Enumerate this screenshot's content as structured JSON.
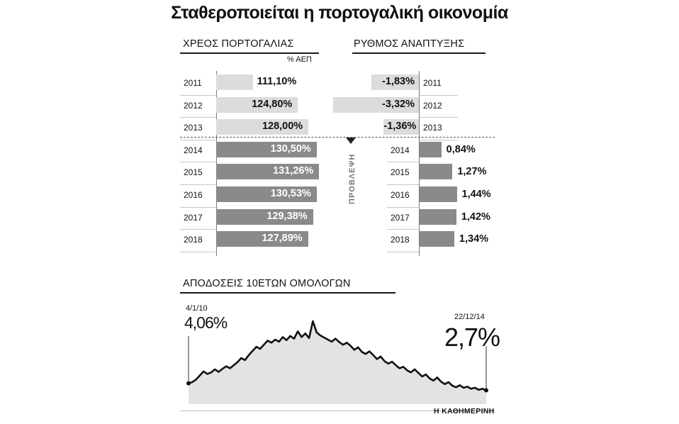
{
  "title": "Σταθεροποιείται η πορτογαλική οικονομία",
  "credit": "Η ΚΑΘΗΜΕΡΙΝΗ",
  "colors": {
    "actual": "#dcdcdc",
    "forecast": "#8a8a8a",
    "area": "#e3e3e3",
    "line": "#111111"
  },
  "chart_data": [
    {
      "type": "bar",
      "orientation": "horizontal",
      "title": "ΧΡΕΟΣ ΠΟΡΤΟΓΑΛΙΑΣ",
      "unit": "% ΑΕΠ",
      "categories": [
        "2011",
        "2012",
        "2013",
        "2014",
        "2015",
        "2016",
        "2017",
        "2018"
      ],
      "values": [
        111.1,
        124.8,
        128.0,
        130.5,
        131.26,
        130.53,
        129.38,
        127.89
      ],
      "labels": [
        "111,10%",
        "124,80%",
        "128,00%",
        "130,50%",
        "131,26%",
        "130,53%",
        "129,38%",
        "127,89%"
      ],
      "forecast_from": "2014"
    },
    {
      "type": "bar",
      "orientation": "horizontal",
      "title": "ΡΥΘΜΟΣ ΑΝΑΠΤΥΞΗΣ",
      "categories": [
        "2011",
        "2012",
        "2013",
        "2014",
        "2015",
        "2016",
        "2017",
        "2018"
      ],
      "values": [
        -1.83,
        -3.32,
        -1.36,
        0.84,
        1.27,
        1.44,
        1.42,
        1.34
      ],
      "labels": [
        "-1,83%",
        "-3,32%",
        "-1,36%",
        "0,84%",
        "1,27%",
        "1,44%",
        "1,42%",
        "1,34%"
      ],
      "forecast_from": "2014",
      "forecast_label": "ΠΡΟΒΛΕΨΗ"
    },
    {
      "type": "area",
      "title": "ΑΠΟΔΟΣΕΙΣ 10ΕΤΩΝ ΟΜΟΛΟΓΩΝ",
      "x_start": "4/1/10",
      "x_end": "22/12/14",
      "ylim": [
        0,
        18
      ],
      "start_label": "4,06%",
      "end_label": "2,7%",
      "values": [
        4.06,
        4.3,
        4.8,
        5.6,
        6.4,
        5.9,
        6.2,
        6.8,
        6.3,
        6.9,
        7.4,
        7.0,
        7.6,
        8.2,
        9.0,
        8.6,
        9.6,
        10.4,
        11.2,
        10.8,
        11.6,
        12.4,
        12.0,
        12.6,
        12.2,
        13.1,
        12.5,
        13.3,
        12.8,
        14.2,
        13.1,
        13.8,
        12.9,
        16.2,
        14.0,
        13.4,
        13.0,
        12.6,
        12.2,
        12.8,
        12.1,
        11.6,
        12.0,
        11.4,
        10.6,
        11.1,
        10.2,
        9.8,
        10.3,
        9.6,
        8.8,
        9.3,
        8.4,
        7.9,
        8.3,
        7.6,
        7.0,
        7.3,
        6.6,
        6.2,
        6.8,
        6.1,
        5.4,
        5.8,
        5.0,
        4.6,
        5.2,
        4.4,
        3.9,
        4.3,
        3.6,
        3.3,
        3.7,
        3.2,
        3.4,
        3.0,
        3.2,
        2.8,
        3.0,
        2.7
      ]
    }
  ]
}
